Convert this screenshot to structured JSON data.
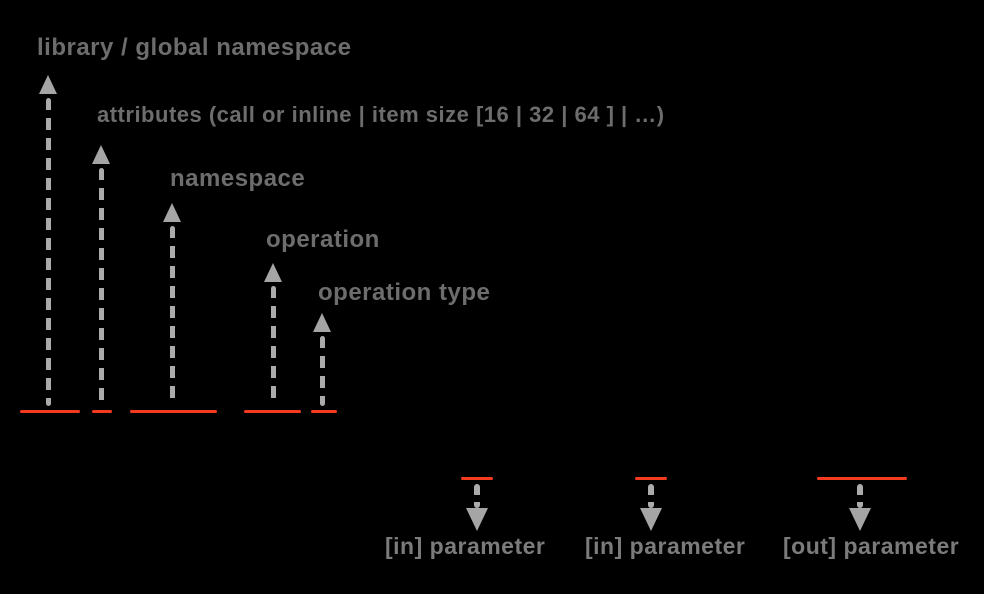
{
  "background": "#000000",
  "colors": {
    "label_text": "#6d6d6d",
    "parameter_label_text": "#7b7b7b",
    "arrow": "#a9a9a9",
    "underline_red": "#f43b1f"
  },
  "up_callouts": [
    {
      "id": "library-global-namespace",
      "label": "library / global namespace"
    },
    {
      "id": "attributes",
      "label": "attributes (call or inline | item size [16 | 32 | 64 ] | …)"
    },
    {
      "id": "namespace",
      "label": "namespace"
    },
    {
      "id": "operation",
      "label": "operation"
    },
    {
      "id": "operation-type",
      "label": "operation type"
    }
  ],
  "down_callouts": [
    {
      "id": "in-parameter-1",
      "label": "[in] parameter"
    },
    {
      "id": "in-parameter-2",
      "label": "[in] parameter"
    },
    {
      "id": "out-parameter",
      "label": "[out] parameter"
    }
  ]
}
